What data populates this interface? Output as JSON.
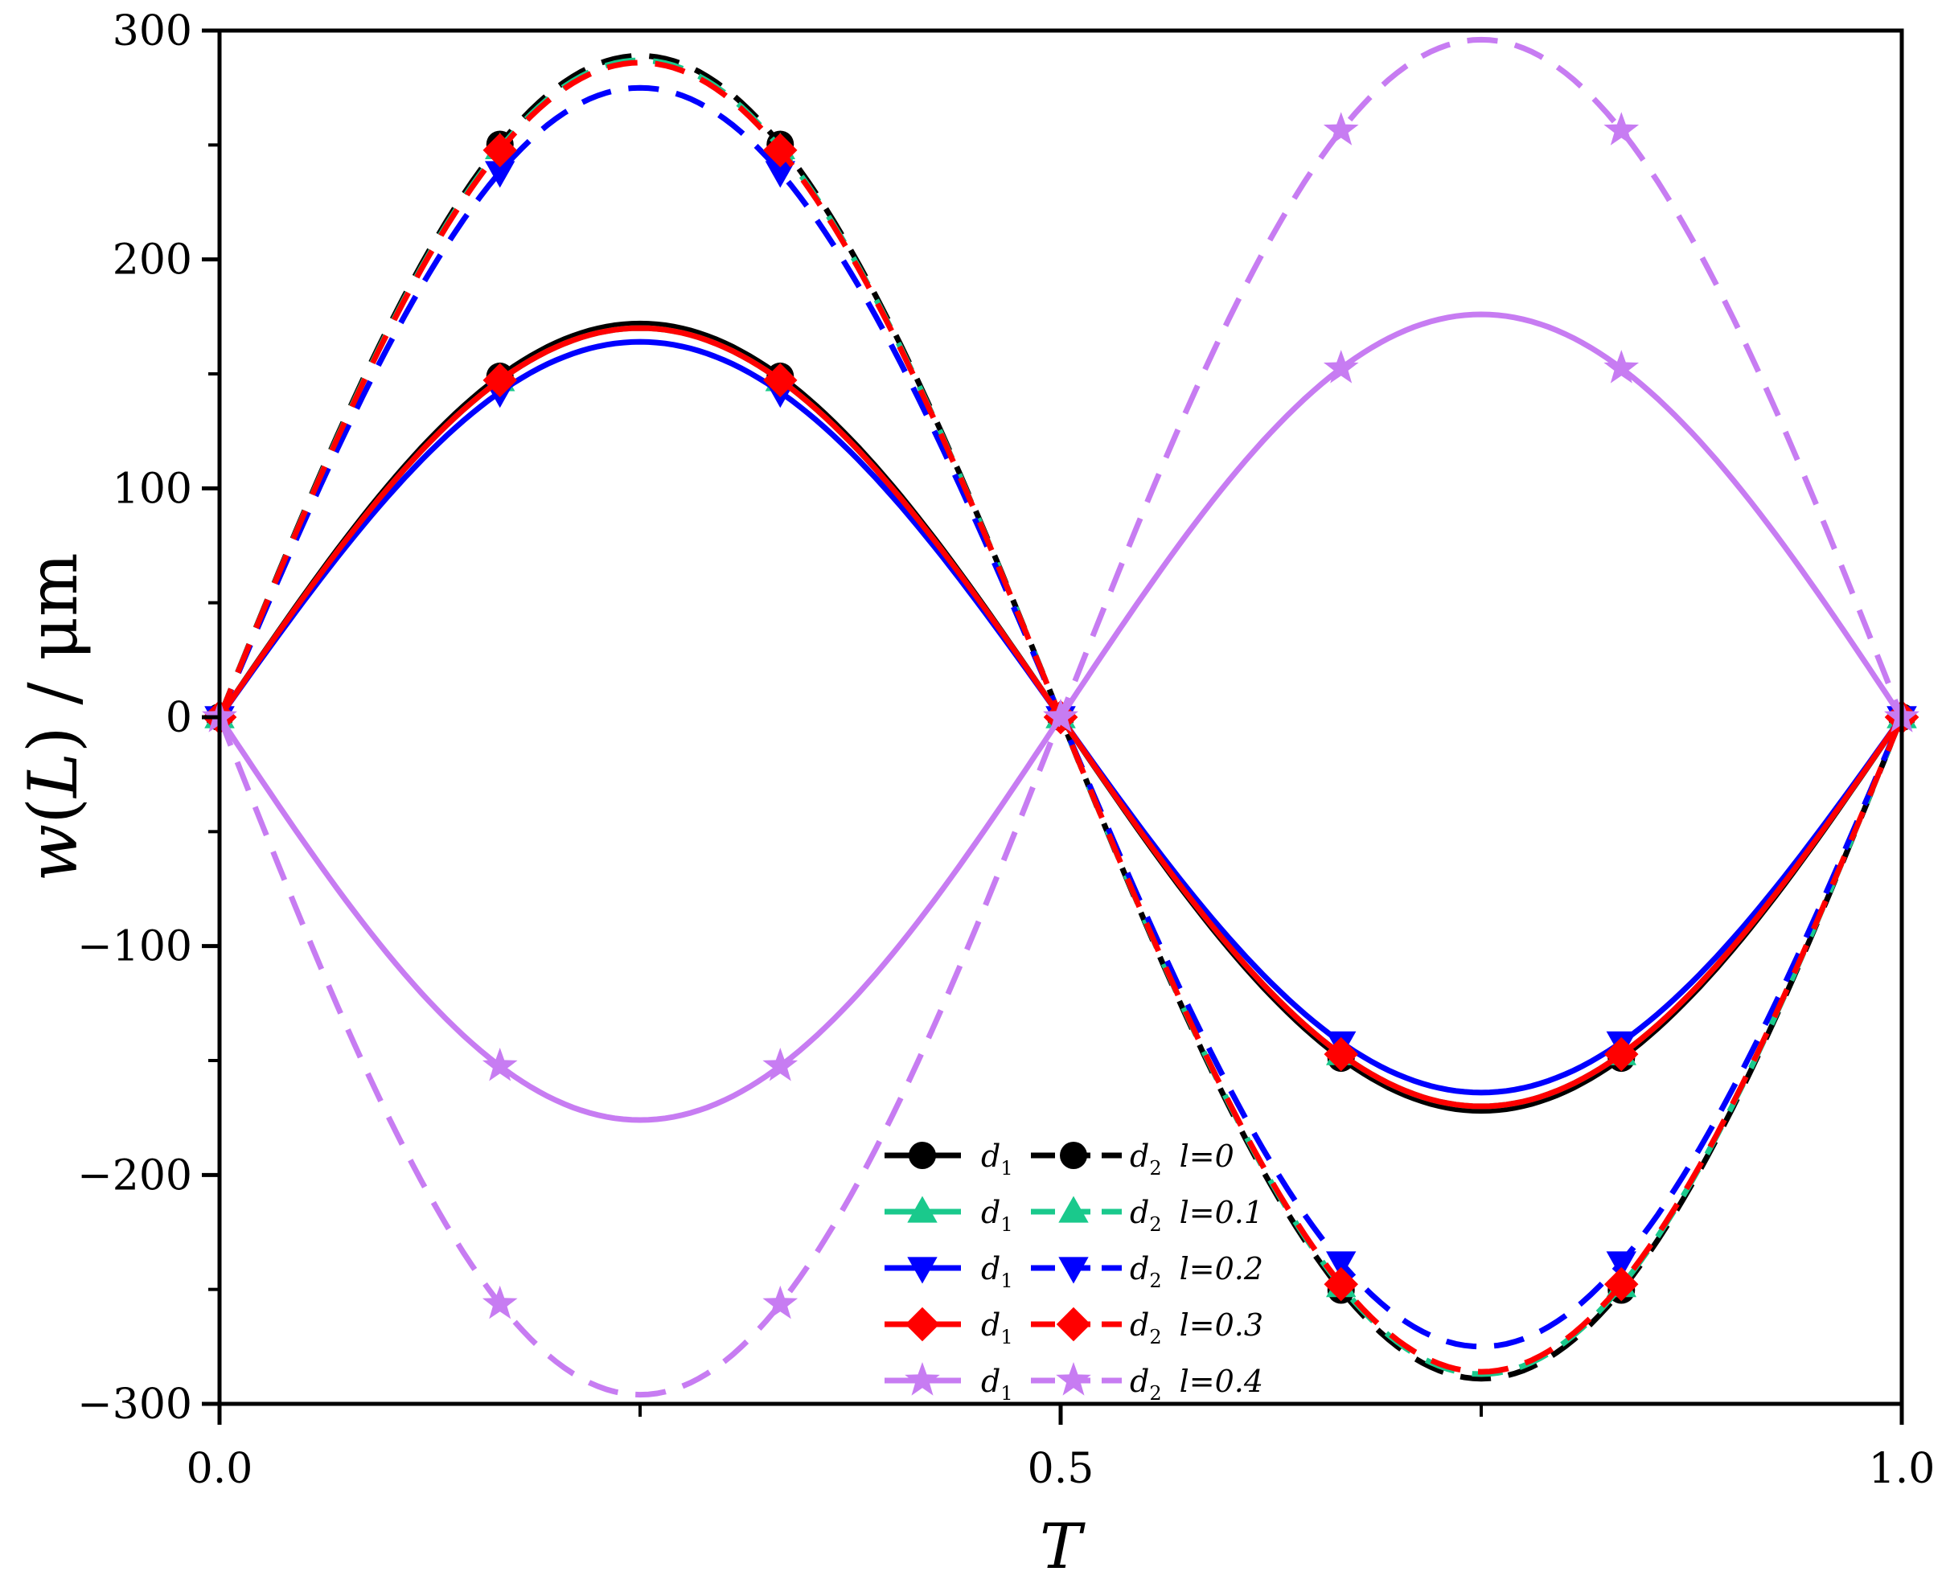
{
  "chart_data": {
    "type": "line",
    "xlabel": "T",
    "ylabel_italic": "w",
    "ylabel_arg": "L",
    "ylabel_unit": "μm",
    "xlim": [
      0,
      1
    ],
    "ylim": [
      -300,
      300
    ],
    "xticks": [
      0,
      0.5,
      1.0
    ],
    "xtick_labels": [
      "0.0",
      "0.5",
      "1.0"
    ],
    "yticks": [
      -300,
      -200,
      -100,
      0,
      100,
      200,
      300
    ],
    "ytick_labels": [
      "−300",
      "−200",
      "−100",
      "0",
      "100",
      "200",
      "300"
    ],
    "grid": false,
    "legend_position": "bottom-center",
    "legend_mode_labels": [
      "d",
      "d"
    ],
    "legend_mode_subscripts": [
      "1",
      "2"
    ],
    "legend_param_symbol": "l",
    "marker_positions_T": [
      0,
      0.1667,
      0.3333,
      0.5,
      0.6667,
      0.8333,
      1.0
    ],
    "series": [
      {
        "name": "d1 l=0",
        "l_value": "0",
        "color": "#000000",
        "marker": "circle",
        "style": "solid",
        "amplitude": 172,
        "mode": "d1"
      },
      {
        "name": "d2 l=0",
        "l_value": "0",
        "color": "#000000",
        "marker": "circle",
        "style": "dashed",
        "amplitude": 289,
        "mode": "d2"
      },
      {
        "name": "d1 l=0.1",
        "l_value": "0.1",
        "color": "#1ac98c",
        "marker": "triangle-up",
        "style": "solid",
        "amplitude": 170,
        "mode": "d1"
      },
      {
        "name": "d2 l=0.1",
        "l_value": "0.1",
        "color": "#1ac98c",
        "marker": "triangle-up",
        "style": "dashed",
        "amplitude": 287,
        "mode": "d2"
      },
      {
        "name": "d1 l=0.2",
        "l_value": "0.2",
        "color": "#0000ff",
        "marker": "triangle-down",
        "style": "solid",
        "amplitude": 164,
        "mode": "d1"
      },
      {
        "name": "d2 l=0.2",
        "l_value": "0.2",
        "color": "#0000ff",
        "marker": "triangle-down",
        "style": "dashed",
        "amplitude": 275,
        "mode": "d2"
      },
      {
        "name": "d1 l=0.3",
        "l_value": "0.3",
        "color": "#ff0000",
        "marker": "diamond",
        "style": "solid",
        "amplitude": 170,
        "mode": "d1"
      },
      {
        "name": "d2 l=0.3",
        "l_value": "0.3",
        "color": "#ff0000",
        "marker": "diamond",
        "style": "dashed",
        "amplitude": 286,
        "mode": "d2"
      },
      {
        "name": "d1 l=0.4",
        "l_value": "0.4",
        "color": "#c77cf2",
        "marker": "star",
        "style": "solid",
        "amplitude": -176,
        "mode": "d1"
      },
      {
        "name": "d2 l=0.4",
        "l_value": "0.4",
        "color": "#c77cf2",
        "marker": "star",
        "style": "dashed",
        "amplitude": -296,
        "mode": "d2"
      }
    ]
  }
}
